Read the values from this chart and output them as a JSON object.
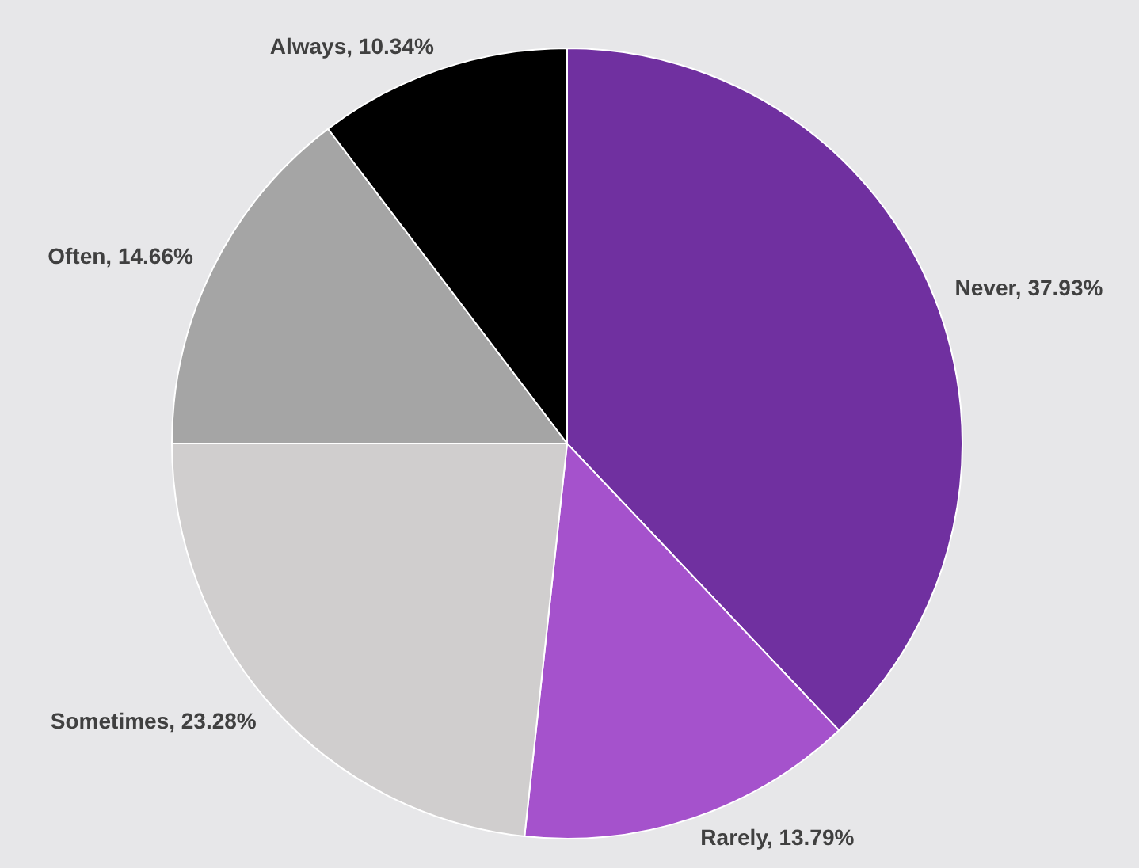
{
  "chart_data": {
    "type": "pie",
    "categories": [
      "Never",
      "Rarely",
      "Sometimes",
      "Often",
      "Always"
    ],
    "values": [
      37.93,
      13.79,
      23.28,
      14.66,
      10.34
    ],
    "value_labels": [
      "37.93%",
      "13.79%",
      "23.28%",
      "14.66%",
      "10.34%"
    ],
    "colors": [
      "#7030a0",
      "#a552cc",
      "#d0cece",
      "#a5a5a5",
      "#000000"
    ],
    "legend": false
  }
}
